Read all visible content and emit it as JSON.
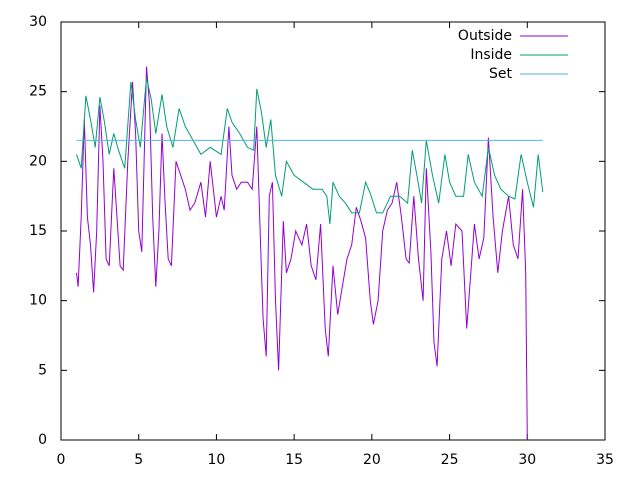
{
  "chart_data": {
    "type": "line",
    "xlim": [
      0,
      35
    ],
    "xticks": [
      0,
      5,
      10,
      15,
      20,
      25,
      30,
      35
    ],
    "ylim": [
      0,
      30
    ],
    "yticks": [
      0,
      5,
      10,
      15,
      20,
      25,
      30
    ],
    "legend": "top right",
    "series": [
      {
        "name": "Outside",
        "color": "#9400d3",
        "x": [
          1.0,
          1.1,
          1.3,
          1.5,
          1.7,
          1.9,
          2.1,
          2.3,
          2.5,
          2.7,
          2.9,
          3.1,
          3.4,
          3.6,
          3.8,
          4.0,
          4.3,
          4.6,
          4.8,
          5.0,
          5.2,
          5.5,
          5.7,
          5.9,
          6.1,
          6.3,
          6.5,
          6.7,
          6.9,
          7.1,
          7.4,
          7.7,
          8.0,
          8.3,
          8.6,
          9.0,
          9.3,
          9.6,
          9.9,
          10.0,
          10.3,
          10.5,
          10.8,
          11.0,
          11.3,
          11.6,
          12.0,
          12.3,
          12.6,
          12.9,
          13.0,
          13.2,
          13.4,
          13.6,
          13.8,
          14.0,
          14.3,
          14.5,
          14.8,
          15.1,
          15.5,
          15.8,
          16.1,
          16.4,
          16.7,
          17.0,
          17.2,
          17.5,
          17.8,
          18.1,
          18.4,
          18.7,
          19.0,
          19.3,
          19.6,
          19.9,
          20.1,
          20.4,
          20.7,
          21.0,
          21.3,
          21.6,
          21.9,
          22.2,
          22.4,
          22.7,
          23.0,
          23.3,
          23.5,
          23.8,
          24.0,
          24.2,
          24.5,
          24.8,
          25.1,
          25.4,
          25.8,
          26.1,
          26.3,
          26.6,
          26.9,
          27.2,
          27.5,
          27.8,
          28.1,
          28.4,
          28.8,
          29.1,
          29.4,
          29.7,
          29.9,
          30.0
        ],
        "values": [
          12,
          11,
          16,
          23,
          16,
          14,
          10.6,
          15,
          24,
          20,
          13,
          12.5,
          19.5,
          16,
          12.5,
          12.2,
          20,
          25.7,
          22,
          15,
          13.5,
          26.8,
          24,
          16,
          11,
          15,
          22,
          17,
          13,
          12.5,
          20,
          19,
          18,
          16.5,
          17,
          18.5,
          16,
          20,
          17,
          16,
          17.5,
          16.5,
          22.5,
          19,
          18,
          18.5,
          18.5,
          18,
          22.5,
          12,
          8.7,
          6,
          17.5,
          18.5,
          10,
          5,
          15.7,
          12,
          13,
          15,
          14,
          15.5,
          12.5,
          11.5,
          15.5,
          8,
          6,
          12.5,
          9,
          11,
          13,
          14,
          16.7,
          15.7,
          14.5,
          10,
          8.3,
          10,
          15,
          16.5,
          17,
          18.5,
          16,
          13,
          12.7,
          17.5,
          13,
          10,
          19.5,
          13.5,
          7,
          5.3,
          13,
          15,
          12.5,
          15.5,
          15,
          8,
          11,
          15.5,
          13,
          14.5,
          21.7,
          16,
          12,
          15,
          17.5,
          14,
          13,
          18,
          12,
          0
        ]
      },
      {
        "name": "Inside",
        "color": "#009e73",
        "x": [
          1.0,
          1.3,
          1.6,
          1.9,
          2.2,
          2.5,
          2.8,
          3.1,
          3.4,
          3.7,
          4.1,
          4.5,
          4.8,
          5.1,
          5.5,
          5.8,
          6.1,
          6.5,
          6.8,
          7.2,
          7.6,
          8.0,
          8.5,
          9.0,
          9.6,
          10.3,
          10.7,
          11.0,
          11.5,
          12.0,
          12.4,
          12.6,
          12.9,
          13.2,
          13.5,
          13.8,
          14.2,
          14.5,
          15.0,
          15.6,
          16.2,
          16.8,
          17.1,
          17.3,
          17.5,
          17.9,
          18.3,
          18.7,
          19.2,
          19.6,
          19.9,
          20.3,
          20.7,
          21.2,
          21.8,
          22.3,
          22.6,
          22.9,
          23.2,
          23.5,
          23.9,
          24.3,
          24.7,
          25.0,
          25.4,
          25.9,
          26.2,
          26.6,
          27.1,
          27.5,
          27.9,
          28.3,
          28.8,
          29.2,
          29.6,
          30.0,
          30.4,
          30.7,
          31.0
        ],
        "values": [
          20.5,
          19.5,
          24.7,
          23,
          21,
          24.6,
          22.8,
          20.5,
          22,
          20.8,
          19.5,
          25.7,
          23,
          21,
          26,
          24.5,
          22,
          24.8,
          22.5,
          21,
          23.8,
          22.5,
          21.5,
          20.5,
          21,
          20.5,
          23.8,
          22.8,
          22,
          21,
          20.8,
          25.2,
          23.5,
          21,
          23,
          19,
          17.5,
          20,
          19,
          18.5,
          18,
          18,
          17.5,
          15.5,
          18.5,
          17.5,
          17,
          16.3,
          16.3,
          18.5,
          17.7,
          16.3,
          16.3,
          17.5,
          17.5,
          17,
          20.8,
          19,
          17,
          21.5,
          19,
          17,
          20.5,
          18.5,
          17.5,
          17.5,
          20.5,
          18.5,
          17.5,
          21,
          19,
          18,
          17.5,
          17.3,
          20.5,
          18.5,
          16.7,
          20.5,
          17.8
        ]
      },
      {
        "name": "Set",
        "color": "#56b4e9",
        "x": [
          1,
          31
        ],
        "values": [
          21.5,
          21.5
        ]
      }
    ]
  }
}
